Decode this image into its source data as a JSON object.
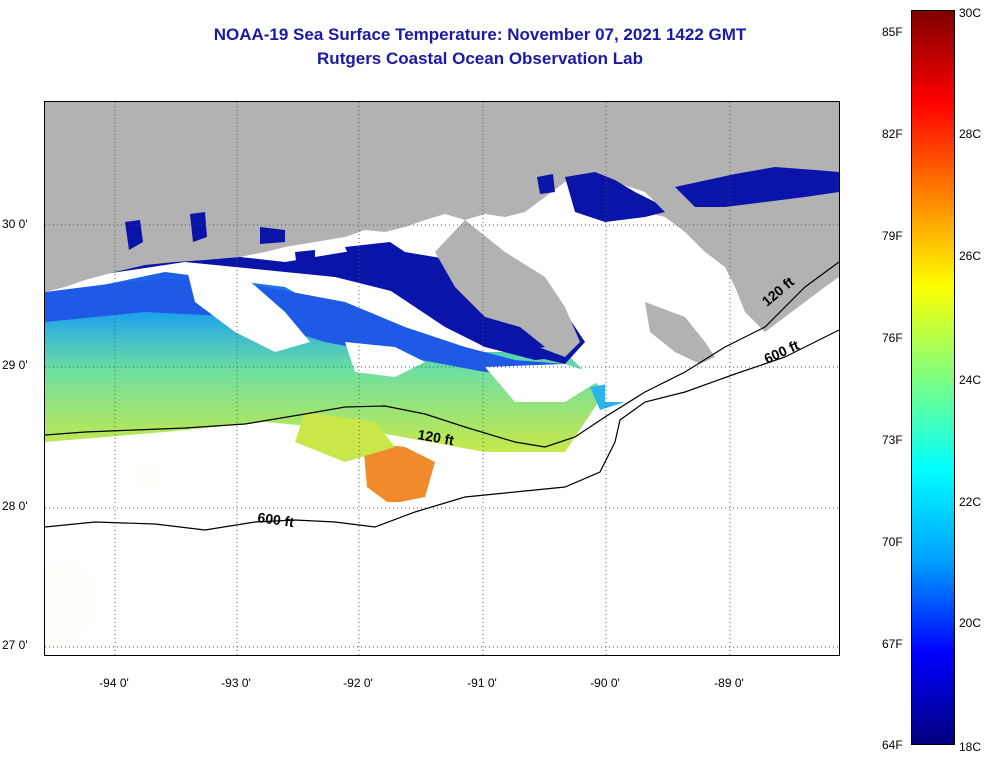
{
  "title": {
    "line1": "NOAA-19 Sea Surface Temperature:  November 07, 2021 1422 GMT",
    "line2": "Rutgers Coastal Ocean Observation Lab"
  },
  "axes": {
    "latitude_labels": [
      "30 0'",
      "29 0'",
      "28 0'",
      "27 0'"
    ],
    "longitude_labels": [
      "-94 0'",
      "-93 0'",
      "-92 0'",
      "-91 0'",
      "-90 0'",
      "-89 0'"
    ],
    "lat_range": [
      26.95,
      30.9
    ],
    "lon_range": [
      -94.55,
      -88.05
    ]
  },
  "contours": {
    "shallow_label": "120 ft",
    "deep_label": "600 ft"
  },
  "colorbar": {
    "fahrenheit_labels": [
      "85F",
      "82F",
      "79F",
      "76F",
      "73F",
      "70F",
      "67F",
      "64F"
    ],
    "celsius_labels": [
      "30C",
      "28C",
      "26C",
      "24C",
      "22C",
      "20C",
      "18C"
    ],
    "range_c": [
      18,
      30
    ],
    "colors": [
      "#00007f",
      "#0000ff",
      "#00a0ff",
      "#00ffff",
      "#7fff7f",
      "#ffff00",
      "#ff8000",
      "#ff0000",
      "#7f0000"
    ]
  },
  "map_colors": {
    "land": "#b2b2b2",
    "cloud": "#ffffff",
    "cold_nearshore": "#0a14a8",
    "cool": "#1e5ae6",
    "mid": "#2ab6e8",
    "warm_shelf": "#8fe07a",
    "warmer": "#e6d83a",
    "hot": "#f08a2a"
  }
}
